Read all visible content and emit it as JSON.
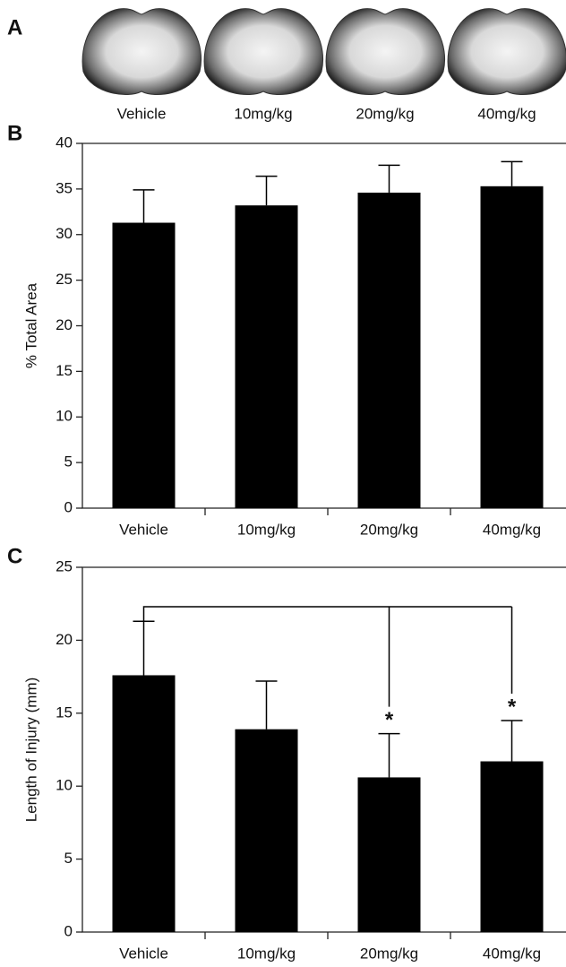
{
  "image_panel": {
    "panel_label": "A",
    "labels": [
      "Vehicle",
      "10mg/kg",
      "20mg/kg",
      "40mg/kg"
    ]
  },
  "chart_data": [
    {
      "type": "bar",
      "panel_label": "B",
      "y_label": "% Total Area",
      "categories": [
        "Vehicle",
        "10mg/kg",
        "20mg/kg",
        "40mg/kg"
      ],
      "values": [
        31.3,
        33.2,
        34.6,
        35.3
      ],
      "errors": [
        3.6,
        3.2,
        3.0,
        2.7
      ],
      "color": "#000000",
      "ylim": [
        0,
        40
      ],
      "yticks": [
        0,
        5,
        10,
        15,
        20,
        25,
        30,
        35,
        40
      ]
    },
    {
      "type": "bar",
      "panel_label": "C",
      "y_label": "Length of Injury (mm)",
      "categories": [
        "Vehicle",
        "10mg/kg",
        "20mg/kg",
        "40mg/kg"
      ],
      "values": [
        17.6,
        13.9,
        10.6,
        11.7
      ],
      "errors": [
        3.7,
        3.3,
        3.0,
        2.8
      ],
      "color": "#000000",
      "ylim": [
        0,
        25
      ],
      "yticks": [
        0,
        5,
        10,
        15,
        20,
        25
      ],
      "annotations": [
        {
          "text": "*",
          "category": 2
        },
        {
          "text": "*",
          "category": 3
        }
      ]
    }
  ]
}
